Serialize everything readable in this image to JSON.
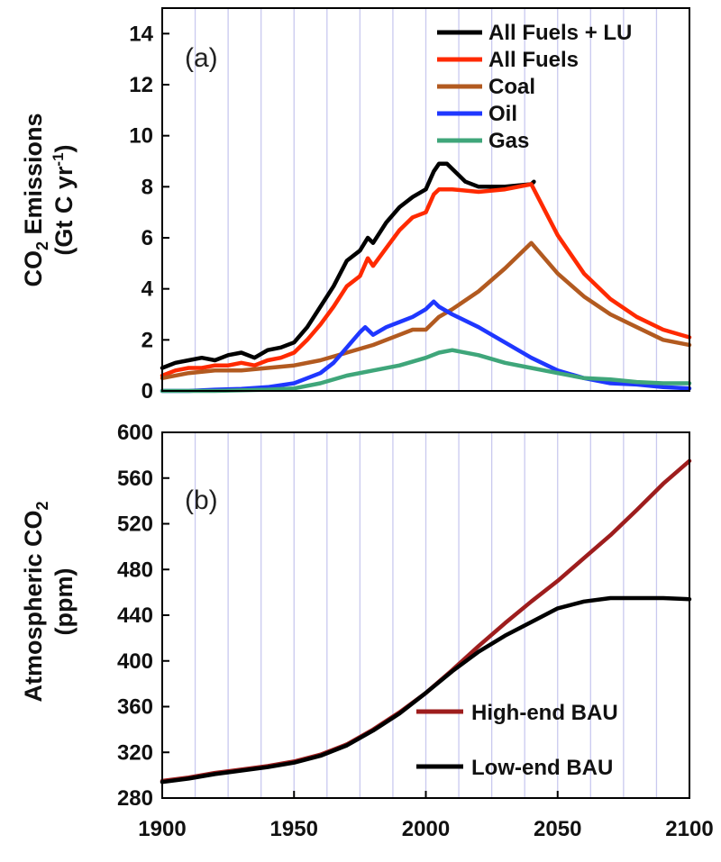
{
  "chart_data": [
    {
      "type": "line",
      "panel_label": "(a)",
      "ylabel_parts": {
        "line1_a": "CO",
        "line1_sub": "2",
        "line1_b": " Emissions",
        "line2_a": "(Gt  C yr",
        "line2_sup": "-1",
        "line2_b": ")"
      },
      "xlim": [
        1900,
        2100
      ],
      "ylim": [
        0,
        15
      ],
      "yticks": [
        0,
        2,
        4,
        6,
        8,
        10,
        12,
        14
      ],
      "legend_position": "top-right",
      "series": [
        {
          "name": "All Fuels + LU",
          "color": "#000000",
          "x": [
            1900,
            1905,
            1910,
            1915,
            1920,
            1925,
            1930,
            1935,
            1940,
            1945,
            1950,
            1955,
            1960,
            1965,
            1970,
            1975,
            1978,
            1980,
            1985,
            1990,
            1995,
            2000,
            2003,
            2005,
            2008,
            2010,
            2015,
            2020,
            2030,
            2040,
            2041
          ],
          "y": [
            0.9,
            1.1,
            1.2,
            1.3,
            1.2,
            1.4,
            1.5,
            1.3,
            1.6,
            1.7,
            1.9,
            2.5,
            3.3,
            4.1,
            5.1,
            5.5,
            6.0,
            5.8,
            6.6,
            7.2,
            7.6,
            7.9,
            8.6,
            8.9,
            8.9,
            8.7,
            8.2,
            8.0,
            8.0,
            8.1,
            8.2
          ]
        },
        {
          "name": "All Fuels",
          "color": "#ff2a00",
          "x": [
            1900,
            1905,
            1910,
            1915,
            1920,
            1925,
            1930,
            1935,
            1940,
            1945,
            1950,
            1955,
            1960,
            1965,
            1970,
            1975,
            1978,
            1980,
            1985,
            1990,
            1995,
            2000,
            2003,
            2005,
            2010,
            2020,
            2030,
            2040,
            2045,
            2050,
            2060,
            2070,
            2080,
            2090,
            2100
          ],
          "y": [
            0.6,
            0.8,
            0.9,
            0.9,
            1.0,
            1.0,
            1.1,
            1.0,
            1.2,
            1.3,
            1.5,
            2.0,
            2.6,
            3.3,
            4.1,
            4.5,
            5.2,
            4.9,
            5.6,
            6.3,
            6.8,
            7.0,
            7.7,
            7.9,
            7.9,
            7.8,
            7.9,
            8.1,
            7.1,
            6.1,
            4.6,
            3.6,
            2.9,
            2.4,
            2.1
          ]
        },
        {
          "name": "Coal",
          "color": "#b25a20",
          "x": [
            1900,
            1910,
            1920,
            1930,
            1940,
            1950,
            1960,
            1970,
            1980,
            1990,
            1995,
            2000,
            2005,
            2010,
            2020,
            2030,
            2040,
            2050,
            2060,
            2070,
            2080,
            2090,
            2100
          ],
          "y": [
            0.5,
            0.7,
            0.8,
            0.8,
            0.9,
            1.0,
            1.2,
            1.5,
            1.8,
            2.2,
            2.4,
            2.4,
            2.9,
            3.2,
            3.9,
            4.8,
            5.8,
            4.6,
            3.7,
            3.0,
            2.5,
            2.0,
            1.8
          ]
        },
        {
          "name": "Oil",
          "color": "#1f37ff",
          "x": [
            1900,
            1910,
            1920,
            1930,
            1940,
            1950,
            1960,
            1965,
            1970,
            1975,
            1977,
            1980,
            1985,
            1990,
            1995,
            2000,
            2003,
            2005,
            2010,
            2020,
            2030,
            2040,
            2050,
            2060,
            2070,
            2080,
            2090,
            2100
          ],
          "y": [
            0.0,
            0.0,
            0.05,
            0.08,
            0.15,
            0.3,
            0.7,
            1.1,
            1.7,
            2.3,
            2.5,
            2.2,
            2.5,
            2.7,
            2.9,
            3.2,
            3.5,
            3.3,
            3.0,
            2.5,
            1.9,
            1.3,
            0.8,
            0.5,
            0.3,
            0.25,
            0.15,
            0.1
          ]
        },
        {
          "name": "Gas",
          "color": "#3fa67a",
          "x": [
            1900,
            1920,
            1940,
            1950,
            1960,
            1970,
            1980,
            1990,
            2000,
            2005,
            2010,
            2020,
            2030,
            2040,
            2050,
            2060,
            2070,
            2080,
            2090,
            2100
          ],
          "y": [
            0.0,
            0.0,
            0.05,
            0.1,
            0.3,
            0.6,
            0.8,
            1.0,
            1.3,
            1.5,
            1.6,
            1.4,
            1.1,
            0.9,
            0.7,
            0.5,
            0.45,
            0.35,
            0.3,
            0.3
          ]
        }
      ]
    },
    {
      "type": "line",
      "panel_label": "(b)",
      "ylabel_parts": {
        "line1_a": "Atmospheric CO",
        "line1_sub": "2",
        "line2": "(ppm)"
      },
      "xlim": [
        1900,
        2100
      ],
      "ylim": [
        280,
        600
      ],
      "xticks": [
        1900,
        1950,
        2000,
        2050,
        2100
      ],
      "yticks": [
        280,
        320,
        360,
        400,
        440,
        480,
        520,
        560,
        600
      ],
      "legend_position": "bottom-right",
      "series": [
        {
          "name": "High-end BAU",
          "color": "#9e1d1d",
          "x": [
            1900,
            1910,
            1920,
            1930,
            1940,
            1950,
            1960,
            1970,
            1980,
            1990,
            2000,
            2010,
            2020,
            2030,
            2040,
            2050,
            2060,
            2070,
            2080,
            2090,
            2100
          ],
          "y": [
            295,
            298,
            302,
            305,
            308,
            312,
            318,
            327,
            340,
            355,
            372,
            392,
            413,
            433,
            452,
            470,
            490,
            510,
            532,
            555,
            575
          ]
        },
        {
          "name": "Low-end BAU",
          "color": "#000000",
          "x": [
            1900,
            1910,
            1920,
            1930,
            1940,
            1950,
            1960,
            1970,
            1980,
            1990,
            2000,
            2010,
            2020,
            2030,
            2040,
            2050,
            2060,
            2070,
            2080,
            2090,
            2100
          ],
          "y": [
            294,
            297,
            301,
            304,
            307,
            311,
            317,
            326,
            339,
            354,
            372,
            391,
            408,
            422,
            434,
            446,
            452,
            455,
            455,
            455,
            454
          ]
        }
      ]
    }
  ]
}
